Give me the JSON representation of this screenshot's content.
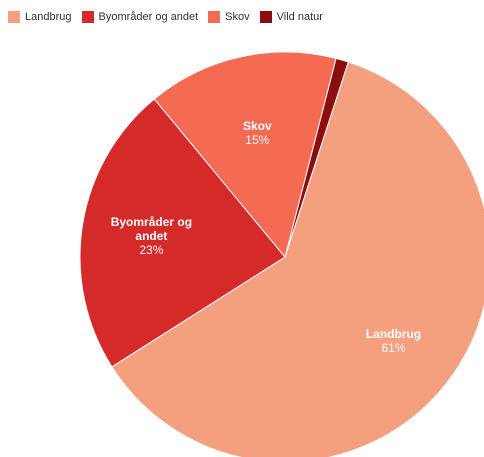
{
  "chart_data": {
    "type": "pie",
    "title": "",
    "legend_position": "top-left",
    "slices": [
      {
        "name": "Landbrug",
        "label_lines": [
          "Landbrug"
        ],
        "percent_label": "61%",
        "value": 61,
        "color": "#f4a07f"
      },
      {
        "name": "Byområder og andet",
        "label_lines": [
          "Byområder og",
          "andet"
        ],
        "percent_label": "23%",
        "value": 23,
        "color": "#d42a2a"
      },
      {
        "name": "Skov",
        "label_lines": [
          "Skov"
        ],
        "percent_label": "15%",
        "value": 15,
        "color": "#f56a52"
      },
      {
        "name": "Vild natur",
        "label_lines": [],
        "percent_label": "",
        "value": 1,
        "color": "#8b0d0d"
      }
    ]
  }
}
